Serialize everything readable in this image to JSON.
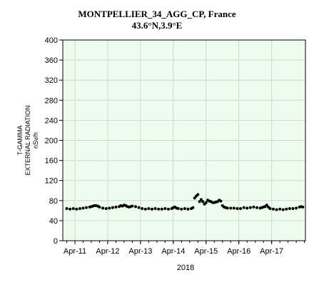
{
  "chart_data": {
    "type": "scatter",
    "title": "MONTPELLIER_34_AGG_CP, France",
    "subtitle": "43.6°N,3.9°E",
    "ylabel_lines": [
      "T-GAMMA",
      "EXTERNAL RADIATION",
      "nSv/h"
    ],
    "xlabel": "2018",
    "ylim": [
      0,
      400
    ],
    "yticks": [
      0,
      40,
      80,
      120,
      160,
      200,
      240,
      280,
      320,
      360,
      400
    ],
    "xticks": [
      "Apr-11",
      "Apr-12",
      "Apr-13",
      "Apr-14",
      "Apr-15",
      "Apr-16",
      "Apr-17"
    ],
    "grid": true,
    "colors": {
      "plot_background": "#eefcee",
      "grid": "#c8dcc8",
      "marker": "#000000"
    },
    "series": [
      {
        "values": [
          [
            11.0,
            64
          ],
          [
            11.1,
            63
          ],
          [
            11.2,
            64
          ],
          [
            11.3,
            63
          ],
          [
            11.4,
            64
          ],
          [
            11.5,
            65
          ],
          [
            11.6,
            66
          ],
          [
            11.7,
            67
          ],
          [
            11.75,
            68
          ],
          [
            11.8,
            69
          ],
          [
            11.85,
            70
          ],
          [
            11.9,
            70
          ],
          [
            11.95,
            69
          ],
          [
            12.0,
            67
          ],
          [
            12.1,
            65
          ],
          [
            12.2,
            64
          ],
          [
            12.3,
            65
          ],
          [
            12.4,
            66
          ],
          [
            12.5,
            67
          ],
          [
            12.6,
            68
          ],
          [
            12.65,
            70
          ],
          [
            12.7,
            69
          ],
          [
            12.75,
            71
          ],
          [
            12.8,
            70
          ],
          [
            12.85,
            68
          ],
          [
            12.9,
            67
          ],
          [
            12.95,
            68
          ],
          [
            13.0,
            69
          ],
          [
            13.1,
            68
          ],
          [
            13.2,
            66
          ],
          [
            13.3,
            64
          ],
          [
            13.4,
            63
          ],
          [
            13.5,
            64
          ],
          [
            13.6,
            63
          ],
          [
            13.7,
            64
          ],
          [
            13.8,
            63
          ],
          [
            13.9,
            63
          ],
          [
            14.0,
            64
          ],
          [
            14.1,
            63
          ],
          [
            14.2,
            64
          ],
          [
            14.25,
            66
          ],
          [
            14.3,
            67
          ],
          [
            14.35,
            65
          ],
          [
            14.4,
            64
          ],
          [
            14.5,
            63
          ],
          [
            14.6,
            64
          ],
          [
            14.7,
            63
          ],
          [
            14.8,
            64
          ],
          [
            14.85,
            66
          ],
          [
            14.9,
            85
          ],
          [
            14.95,
            89
          ],
          [
            15.0,
            92
          ],
          [
            15.05,
            78
          ],
          [
            15.1,
            82
          ],
          [
            15.15,
            78
          ],
          [
            15.2,
            73
          ],
          [
            15.25,
            76
          ],
          [
            15.3,
            81
          ],
          [
            15.35,
            79
          ],
          [
            15.4,
            78
          ],
          [
            15.45,
            76
          ],
          [
            15.5,
            76
          ],
          [
            15.55,
            77
          ],
          [
            15.6,
            78
          ],
          [
            15.65,
            81
          ],
          [
            15.7,
            79
          ],
          [
            15.75,
            70
          ],
          [
            15.8,
            67
          ],
          [
            15.85,
            66
          ],
          [
            15.9,
            65
          ],
          [
            16.0,
            65
          ],
          [
            16.1,
            65
          ],
          [
            16.2,
            64
          ],
          [
            16.3,
            64
          ],
          [
            16.4,
            66
          ],
          [
            16.5,
            65
          ],
          [
            16.6,
            66
          ],
          [
            16.7,
            67
          ],
          [
            16.8,
            66
          ],
          [
            16.9,
            65
          ],
          [
            16.95,
            66
          ],
          [
            17.0,
            67
          ],
          [
            17.05,
            68
          ],
          [
            17.1,
            71
          ],
          [
            17.15,
            67
          ],
          [
            17.2,
            64
          ],
          [
            17.3,
            63
          ],
          [
            17.4,
            62
          ],
          [
            17.5,
            63
          ],
          [
            17.6,
            62
          ],
          [
            17.7,
            63
          ],
          [
            17.8,
            64
          ],
          [
            17.9,
            64
          ],
          [
            18.0,
            65
          ],
          [
            18.1,
            67
          ],
          [
            18.15,
            68
          ],
          [
            18.2,
            67
          ]
        ]
      }
    ]
  }
}
